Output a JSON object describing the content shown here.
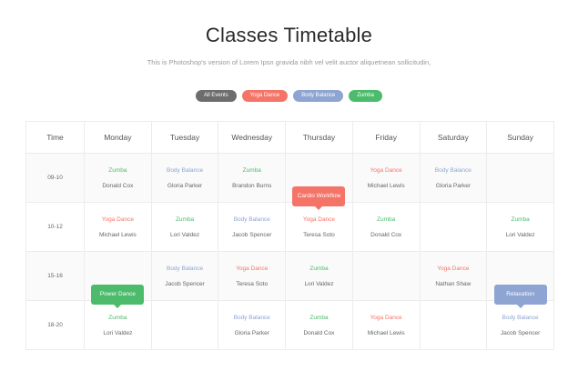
{
  "title": "Classes Timetable",
  "subtitle": "This is Photoshop's version  of Lorem Ipsn gravida nibh vel velit auctor aliquetnean sollicitudin,",
  "colors": {
    "all": "#6d6d6d",
    "Yoga Dance": "#f47468",
    "Body Balance": "#8ea4d2",
    "Zumba": "#4cbb6c"
  },
  "filters": [
    {
      "label": "All Events",
      "color": "#6d6d6d"
    },
    {
      "label": "Yoga Dance",
      "color": "#f47468"
    },
    {
      "label": "Body Balance",
      "color": "#8ea4d2"
    },
    {
      "label": "Zumba",
      "color": "#4cbb6c"
    }
  ],
  "headers": [
    "Time",
    "Monday",
    "Tuesday",
    "Wednesday",
    "Thursday",
    "Friday",
    "Saturday",
    "Sunday"
  ],
  "rows": [
    {
      "time": "09-10",
      "cells": [
        {
          "class": "Zumba",
          "teacher": "Donald Cox"
        },
        {
          "class": "Body Balance",
          "teacher": "Gloria Parker"
        },
        {
          "class": "Zumba",
          "teacher": "Brandon Burns"
        },
        null,
        {
          "class": "Yoga Dance",
          "teacher": "Michael Lewis"
        },
        {
          "class": "Body Balance",
          "teacher": "Gloria Parker"
        },
        null
      ]
    },
    {
      "time": "10-12",
      "cells": [
        {
          "class": "Yoga Dance",
          "teacher": "Michael Lewis"
        },
        {
          "class": "Zumba",
          "teacher": "Lori Valdez"
        },
        {
          "class": "Body Balance",
          "teacher": "Jacob Spencer"
        },
        {
          "class": "Yoga Dance",
          "teacher": "Teresa Soto",
          "tooltip": "Cardio Workflow",
          "tooltip_color": "#f47468"
        },
        {
          "class": "Zumba",
          "teacher": "Donald Cox"
        },
        null,
        {
          "class": "Zumba",
          "teacher": "Lori Valdez"
        }
      ]
    },
    {
      "time": "15-16",
      "cells": [
        null,
        {
          "class": "Body Balance",
          "teacher": "Jacob Spencer"
        },
        {
          "class": "Yoga Dance",
          "teacher": "Teresa Soto"
        },
        {
          "class": "Zumba",
          "teacher": "Lori Valdez"
        },
        null,
        {
          "class": "Yoga Dance",
          "teacher": "Nathan Shaw"
        },
        null
      ]
    },
    {
      "time": "18-20",
      "cells": [
        {
          "class": "Zumba",
          "teacher": "Lori Valdez",
          "tooltip": "Power Dance",
          "tooltip_color": "#4cbb6c"
        },
        null,
        {
          "class": "Body Balance",
          "teacher": "Gloria Parker"
        },
        {
          "class": "Zumba",
          "teacher": "Donald Cox"
        },
        {
          "class": "Yoga Dance",
          "teacher": "Michael Lewis"
        },
        null,
        {
          "class": "Body Balance",
          "teacher": "Jacob Spencer",
          "tooltip": "Relaxation",
          "tooltip_color": "#8ea4d2"
        }
      ]
    }
  ]
}
